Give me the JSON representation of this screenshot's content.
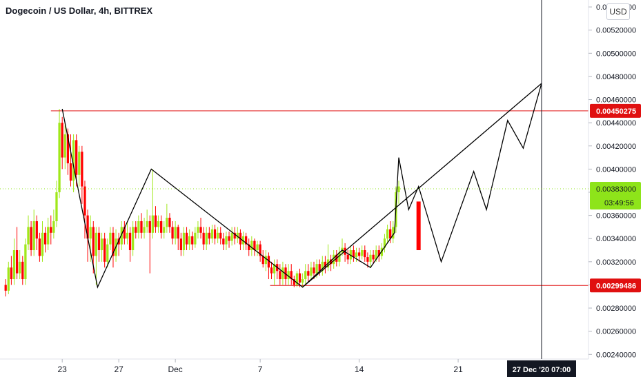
{
  "header": {
    "title": "Dogecoin / US Dollar, 4h, BITTREX",
    "currency_button": "USD"
  },
  "colors": {
    "up": "#a0e81a",
    "down": "#ff0000",
    "line": "#000000",
    "hline": "#e01010",
    "price_tag_up": "#8ee41a"
  },
  "chart_data": {
    "type": "candlestick",
    "y_axis_ticks": [
      "0.00240000",
      "0.00260000",
      "0.00280000",
      "0.00300000",
      "0.00320000",
      "0.00340000",
      "0.00360000",
      "0.00380000",
      "0.00400000",
      "0.00420000",
      "0.00440000",
      "0.00460000",
      "0.00480000",
      "0.00500000",
      "0.00520000",
      "0.00540000"
    ],
    "y_range": [
      0.00236,
      0.00546
    ],
    "x_axis_ticks": [
      {
        "label": "23",
        "day": 23
      },
      {
        "label": "27",
        "day": 27
      },
      {
        "label": "Dec",
        "day": 31
      },
      {
        "label": "7",
        "day": 37
      },
      {
        "label": "14",
        "day": 44
      },
      {
        "label": "21",
        "day": 51
      }
    ],
    "x_range_days": [
      18.6,
      56.9
    ],
    "horizontal_lines": [
      {
        "price": 0.00450275,
        "label": "0.00450275",
        "from_day": 22.2
      },
      {
        "price": 0.00299486,
        "label": "0.00299486",
        "from_day": 37.7
      }
    ],
    "current_price": {
      "price": 0.00383,
      "label": "0.00383000",
      "countdown": "03:49:56"
    },
    "crosshair": {
      "day": 56.9,
      "label": "27 Dec '20  07:00"
    },
    "drawn_path_1": [
      [
        23,
        0.00452
      ],
      [
        25.5,
        0.00298
      ],
      [
        29.3,
        0.004
      ],
      [
        40,
        0.00298
      ],
      [
        42.8,
        0.0033
      ],
      [
        44.8,
        0.00315
      ],
      [
        46.5,
        0.00345
      ],
      [
        46.8,
        0.0041
      ],
      [
        47.5,
        0.00365
      ],
      [
        48.2,
        0.00385
      ],
      [
        49.8,
        0.0032
      ],
      [
        52.1,
        0.00398
      ],
      [
        53,
        0.00365
      ],
      [
        54.5,
        0.00442
      ],
      [
        55.6,
        0.00418
      ],
      [
        56.9,
        0.00474
      ]
    ],
    "drawn_path_2": [
      [
        40,
        0.00298
      ],
      [
        56.9,
        0.00474
      ]
    ],
    "projection_bar": {
      "day": 48.2,
      "top": 0.00372,
      "bottom": 0.0033
    },
    "candles": [
      [
        19.0,
        0.003,
        0.00295,
        0.00305,
        0.0029
      ],
      [
        19.2,
        0.00295,
        0.00315,
        0.0032,
        0.00292
      ],
      [
        19.4,
        0.00315,
        0.00305,
        0.00325,
        0.003
      ],
      [
        19.6,
        0.00305,
        0.0033,
        0.0034,
        0.003
      ],
      [
        19.8,
        0.0033,
        0.0031,
        0.0035,
        0.00305
      ],
      [
        20.0,
        0.0031,
        0.0032,
        0.0033,
        0.00305
      ],
      [
        20.2,
        0.0032,
        0.00305,
        0.00325,
        0.003
      ],
      [
        20.4,
        0.00305,
        0.00335,
        0.0034,
        0.003
      ],
      [
        20.6,
        0.00335,
        0.0035,
        0.0036,
        0.0033
      ],
      [
        20.8,
        0.0035,
        0.0033,
        0.00355,
        0.00325
      ],
      [
        21.0,
        0.0033,
        0.00355,
        0.00365,
        0.00325
      ],
      [
        21.2,
        0.00355,
        0.0034,
        0.0036,
        0.0033
      ],
      [
        21.4,
        0.0034,
        0.00325,
        0.00345,
        0.0032
      ],
      [
        21.6,
        0.00325,
        0.00345,
        0.00355,
        0.0032
      ],
      [
        21.8,
        0.00345,
        0.00335,
        0.0035,
        0.00328
      ],
      [
        22.0,
        0.00335,
        0.0035,
        0.00358,
        0.0033
      ],
      [
        22.2,
        0.0035,
        0.00345,
        0.0036,
        0.00335
      ],
      [
        22.4,
        0.00345,
        0.00355,
        0.00365,
        0.0034
      ],
      [
        22.6,
        0.00355,
        0.0038,
        0.0039,
        0.0035
      ],
      [
        22.8,
        0.0038,
        0.0044,
        0.00452,
        0.00375
      ],
      [
        23.0,
        0.0044,
        0.0041,
        0.00445,
        0.004
      ],
      [
        23.2,
        0.0041,
        0.0043,
        0.0044,
        0.004
      ],
      [
        23.4,
        0.0043,
        0.00405,
        0.00435,
        0.00395
      ],
      [
        23.6,
        0.00405,
        0.0039,
        0.0043,
        0.00385
      ],
      [
        23.8,
        0.0039,
        0.00425,
        0.0043,
        0.0038
      ],
      [
        24.0,
        0.00425,
        0.00395,
        0.0043,
        0.00385
      ],
      [
        24.2,
        0.00395,
        0.00415,
        0.0042,
        0.00385
      ],
      [
        24.4,
        0.00415,
        0.00385,
        0.0042,
        0.0037
      ],
      [
        24.6,
        0.00385,
        0.0036,
        0.0039,
        0.0034
      ],
      [
        24.8,
        0.0036,
        0.0034,
        0.00365,
        0.0032
      ],
      [
        25.0,
        0.0034,
        0.0035,
        0.0036,
        0.0032
      ],
      [
        25.2,
        0.0035,
        0.00325,
        0.00355,
        0.0031
      ],
      [
        25.4,
        0.00325,
        0.00345,
        0.0035,
        0.003
      ],
      [
        25.6,
        0.00345,
        0.0033,
        0.0035,
        0.0032
      ],
      [
        25.8,
        0.0033,
        0.0034,
        0.00345,
        0.0032
      ],
      [
        26.0,
        0.0034,
        0.0032,
        0.00345,
        0.00315
      ],
      [
        26.2,
        0.0032,
        0.00335,
        0.0034,
        0.00315
      ],
      [
        26.4,
        0.00335,
        0.00345,
        0.0035,
        0.0033
      ],
      [
        26.6,
        0.00345,
        0.00325,
        0.0035,
        0.00315
      ],
      [
        26.8,
        0.00325,
        0.0034,
        0.00348,
        0.0032
      ],
      [
        27.0,
        0.0034,
        0.00335,
        0.00345,
        0.00325
      ],
      [
        27.2,
        0.00335,
        0.0035,
        0.00355,
        0.0033
      ],
      [
        27.4,
        0.0035,
        0.0034,
        0.00355,
        0.00335
      ],
      [
        27.6,
        0.0034,
        0.00345,
        0.00355,
        0.00335
      ],
      [
        27.8,
        0.00345,
        0.0033,
        0.0035,
        0.0032
      ],
      [
        28.0,
        0.0033,
        0.0035,
        0.00355,
        0.00325
      ],
      [
        28.2,
        0.0035,
        0.00345,
        0.00355,
        0.0034
      ],
      [
        28.4,
        0.00345,
        0.00355,
        0.0036,
        0.0034
      ],
      [
        28.6,
        0.00355,
        0.00345,
        0.00362,
        0.0034
      ],
      [
        28.8,
        0.00345,
        0.0035,
        0.00358,
        0.0034
      ],
      [
        29.0,
        0.0035,
        0.00355,
        0.00365,
        0.00345
      ],
      [
        29.2,
        0.00355,
        0.00345,
        0.0036,
        0.0031
      ],
      [
        29.4,
        0.00345,
        0.0036,
        0.004,
        0.0034
      ],
      [
        29.6,
        0.0036,
        0.0035,
        0.00368,
        0.00345
      ],
      [
        29.8,
        0.0035,
        0.00355,
        0.0036,
        0.00345
      ],
      [
        30.0,
        0.00355,
        0.00345,
        0.0036,
        0.0034
      ],
      [
        30.2,
        0.00345,
        0.0035,
        0.00355,
        0.0034
      ],
      [
        30.4,
        0.0035,
        0.00358,
        0.0037,
        0.00345
      ],
      [
        30.6,
        0.00358,
        0.0035,
        0.00362,
        0.00345
      ],
      [
        30.8,
        0.0035,
        0.0034,
        0.00355,
        0.00335
      ],
      [
        31.0,
        0.0034,
        0.0035,
        0.00355,
        0.00335
      ],
      [
        31.2,
        0.0035,
        0.0034,
        0.00352,
        0.0033
      ],
      [
        31.4,
        0.0034,
        0.0033,
        0.00345,
        0.00325
      ],
      [
        31.6,
        0.0033,
        0.00345,
        0.0035,
        0.00325
      ],
      [
        31.8,
        0.00345,
        0.00335,
        0.0035,
        0.0033
      ],
      [
        32.0,
        0.00335,
        0.00342,
        0.00348,
        0.0033
      ],
      [
        32.2,
        0.00342,
        0.00335,
        0.00346,
        0.0033
      ],
      [
        32.4,
        0.00335,
        0.00345,
        0.0035,
        0.00332
      ],
      [
        32.6,
        0.00345,
        0.0035,
        0.00355,
        0.0034
      ],
      [
        32.8,
        0.0035,
        0.00345,
        0.00358,
        0.0034
      ],
      [
        33.0,
        0.00345,
        0.00335,
        0.0035,
        0.0033
      ],
      [
        33.2,
        0.00335,
        0.00345,
        0.0035,
        0.0033
      ],
      [
        33.4,
        0.00345,
        0.0034,
        0.0035,
        0.00335
      ],
      [
        33.6,
        0.0034,
        0.00348,
        0.00352,
        0.00336
      ],
      [
        33.8,
        0.00348,
        0.0034,
        0.00352,
        0.00335
      ],
      [
        34.0,
        0.0034,
        0.00345,
        0.0035,
        0.00336
      ],
      [
        34.2,
        0.00345,
        0.0034,
        0.0035,
        0.00335
      ],
      [
        34.4,
        0.0034,
        0.00335,
        0.00345,
        0.0033
      ],
      [
        34.6,
        0.00335,
        0.00342,
        0.00346,
        0.0033
      ],
      [
        34.8,
        0.00342,
        0.00338,
        0.00346,
        0.00332
      ],
      [
        35.0,
        0.00338,
        0.00345,
        0.0035,
        0.00334
      ],
      [
        35.2,
        0.00345,
        0.0034,
        0.0035,
        0.00335
      ],
      [
        35.4,
        0.0034,
        0.00345,
        0.0035,
        0.00336
      ],
      [
        35.6,
        0.00345,
        0.00335,
        0.00348,
        0.0033
      ],
      [
        35.8,
        0.00335,
        0.00342,
        0.00346,
        0.0033
      ],
      [
        36.0,
        0.00342,
        0.00335,
        0.00345,
        0.0033
      ],
      [
        36.2,
        0.00335,
        0.0033,
        0.0034,
        0.00325
      ],
      [
        36.4,
        0.0033,
        0.00338,
        0.00342,
        0.00325
      ],
      [
        36.6,
        0.00338,
        0.0033,
        0.0034,
        0.00325
      ],
      [
        36.8,
        0.0033,
        0.00335,
        0.00338,
        0.00325
      ],
      [
        37.0,
        0.00335,
        0.00325,
        0.00338,
        0.0032
      ],
      [
        37.2,
        0.00325,
        0.00318,
        0.0033,
        0.00315
      ],
      [
        37.4,
        0.00318,
        0.00325,
        0.0033,
        0.00312
      ],
      [
        37.6,
        0.00325,
        0.00315,
        0.00328,
        0.00305
      ],
      [
        37.8,
        0.00315,
        0.0031,
        0.0032,
        0.00305
      ],
      [
        38.0,
        0.0031,
        0.00318,
        0.00322,
        0.003
      ],
      [
        38.2,
        0.00318,
        0.00312,
        0.00322,
        0.00305
      ],
      [
        38.4,
        0.00312,
        0.00305,
        0.00318,
        0.003
      ],
      [
        38.6,
        0.00305,
        0.00315,
        0.0032,
        0.003
      ],
      [
        38.8,
        0.00315,
        0.00305,
        0.00318,
        0.003
      ],
      [
        39.0,
        0.00305,
        0.00312,
        0.00318,
        0.003
      ],
      [
        39.2,
        0.00312,
        0.00305,
        0.00318,
        0.003
      ],
      [
        39.4,
        0.00305,
        0.003,
        0.00308,
        0.00298
      ],
      [
        39.6,
        0.003,
        0.0031,
        0.00312,
        0.00298
      ],
      [
        39.8,
        0.0031,
        0.00302,
        0.00314,
        0.00298
      ],
      [
        40.0,
        0.00302,
        0.00305,
        0.0031,
        0.00298
      ],
      [
        40.2,
        0.00305,
        0.00312,
        0.00318,
        0.003
      ],
      [
        40.4,
        0.00312,
        0.00308,
        0.00318,
        0.00302
      ],
      [
        40.6,
        0.00308,
        0.00315,
        0.0032,
        0.00304
      ],
      [
        40.8,
        0.00315,
        0.0031,
        0.0032,
        0.00305
      ],
      [
        41.0,
        0.0031,
        0.00318,
        0.00322,
        0.00306
      ],
      [
        41.2,
        0.00318,
        0.00312,
        0.00322,
        0.00308
      ],
      [
        41.4,
        0.00312,
        0.0032,
        0.00325,
        0.00308
      ],
      [
        41.6,
        0.0032,
        0.00315,
        0.00325,
        0.0031
      ],
      [
        41.8,
        0.00315,
        0.00322,
        0.00335,
        0.00312
      ],
      [
        42.0,
        0.00322,
        0.00318,
        0.00326,
        0.00312
      ],
      [
        42.2,
        0.00318,
        0.00326,
        0.0033,
        0.00314
      ],
      [
        42.4,
        0.00326,
        0.0032,
        0.0033,
        0.00316
      ],
      [
        42.6,
        0.0032,
        0.00328,
        0.00333,
        0.00316
      ],
      [
        42.8,
        0.00328,
        0.00332,
        0.0034,
        0.00325
      ],
      [
        43.0,
        0.00332,
        0.00326,
        0.00336,
        0.0032
      ],
      [
        43.2,
        0.00326,
        0.00322,
        0.0033,
        0.00318
      ],
      [
        43.4,
        0.00322,
        0.0033,
        0.00334,
        0.00318
      ],
      [
        43.6,
        0.0033,
        0.00324,
        0.00334,
        0.0032
      ],
      [
        43.8,
        0.00324,
        0.00328,
        0.00332,
        0.0032
      ],
      [
        44.0,
        0.00328,
        0.00325,
        0.00332,
        0.0032
      ],
      [
        44.2,
        0.00325,
        0.0033,
        0.00334,
        0.00322
      ],
      [
        44.4,
        0.0033,
        0.00324,
        0.00334,
        0.0032
      ],
      [
        44.6,
        0.00324,
        0.0032,
        0.00328,
        0.00315
      ],
      [
        44.8,
        0.0032,
        0.00326,
        0.0033,
        0.00315
      ],
      [
        45.0,
        0.00326,
        0.00322,
        0.0033,
        0.00318
      ],
      [
        45.2,
        0.00322,
        0.0033,
        0.00334,
        0.0032
      ],
      [
        45.4,
        0.0033,
        0.00325,
        0.00334,
        0.0032
      ],
      [
        45.6,
        0.00325,
        0.00332,
        0.00336,
        0.00322
      ],
      [
        45.8,
        0.00332,
        0.0034,
        0.00344,
        0.00328
      ],
      [
        46.0,
        0.0034,
        0.00348,
        0.00352,
        0.00336
      ],
      [
        46.2,
        0.00348,
        0.0034,
        0.00355,
        0.00336
      ],
      [
        46.4,
        0.0034,
        0.0035,
        0.00355,
        0.00336
      ],
      [
        46.6,
        0.0035,
        0.0038,
        0.00385,
        0.00345
      ],
      [
        46.8,
        0.0038,
        0.00385,
        0.0039,
        0.0037
      ]
    ]
  }
}
